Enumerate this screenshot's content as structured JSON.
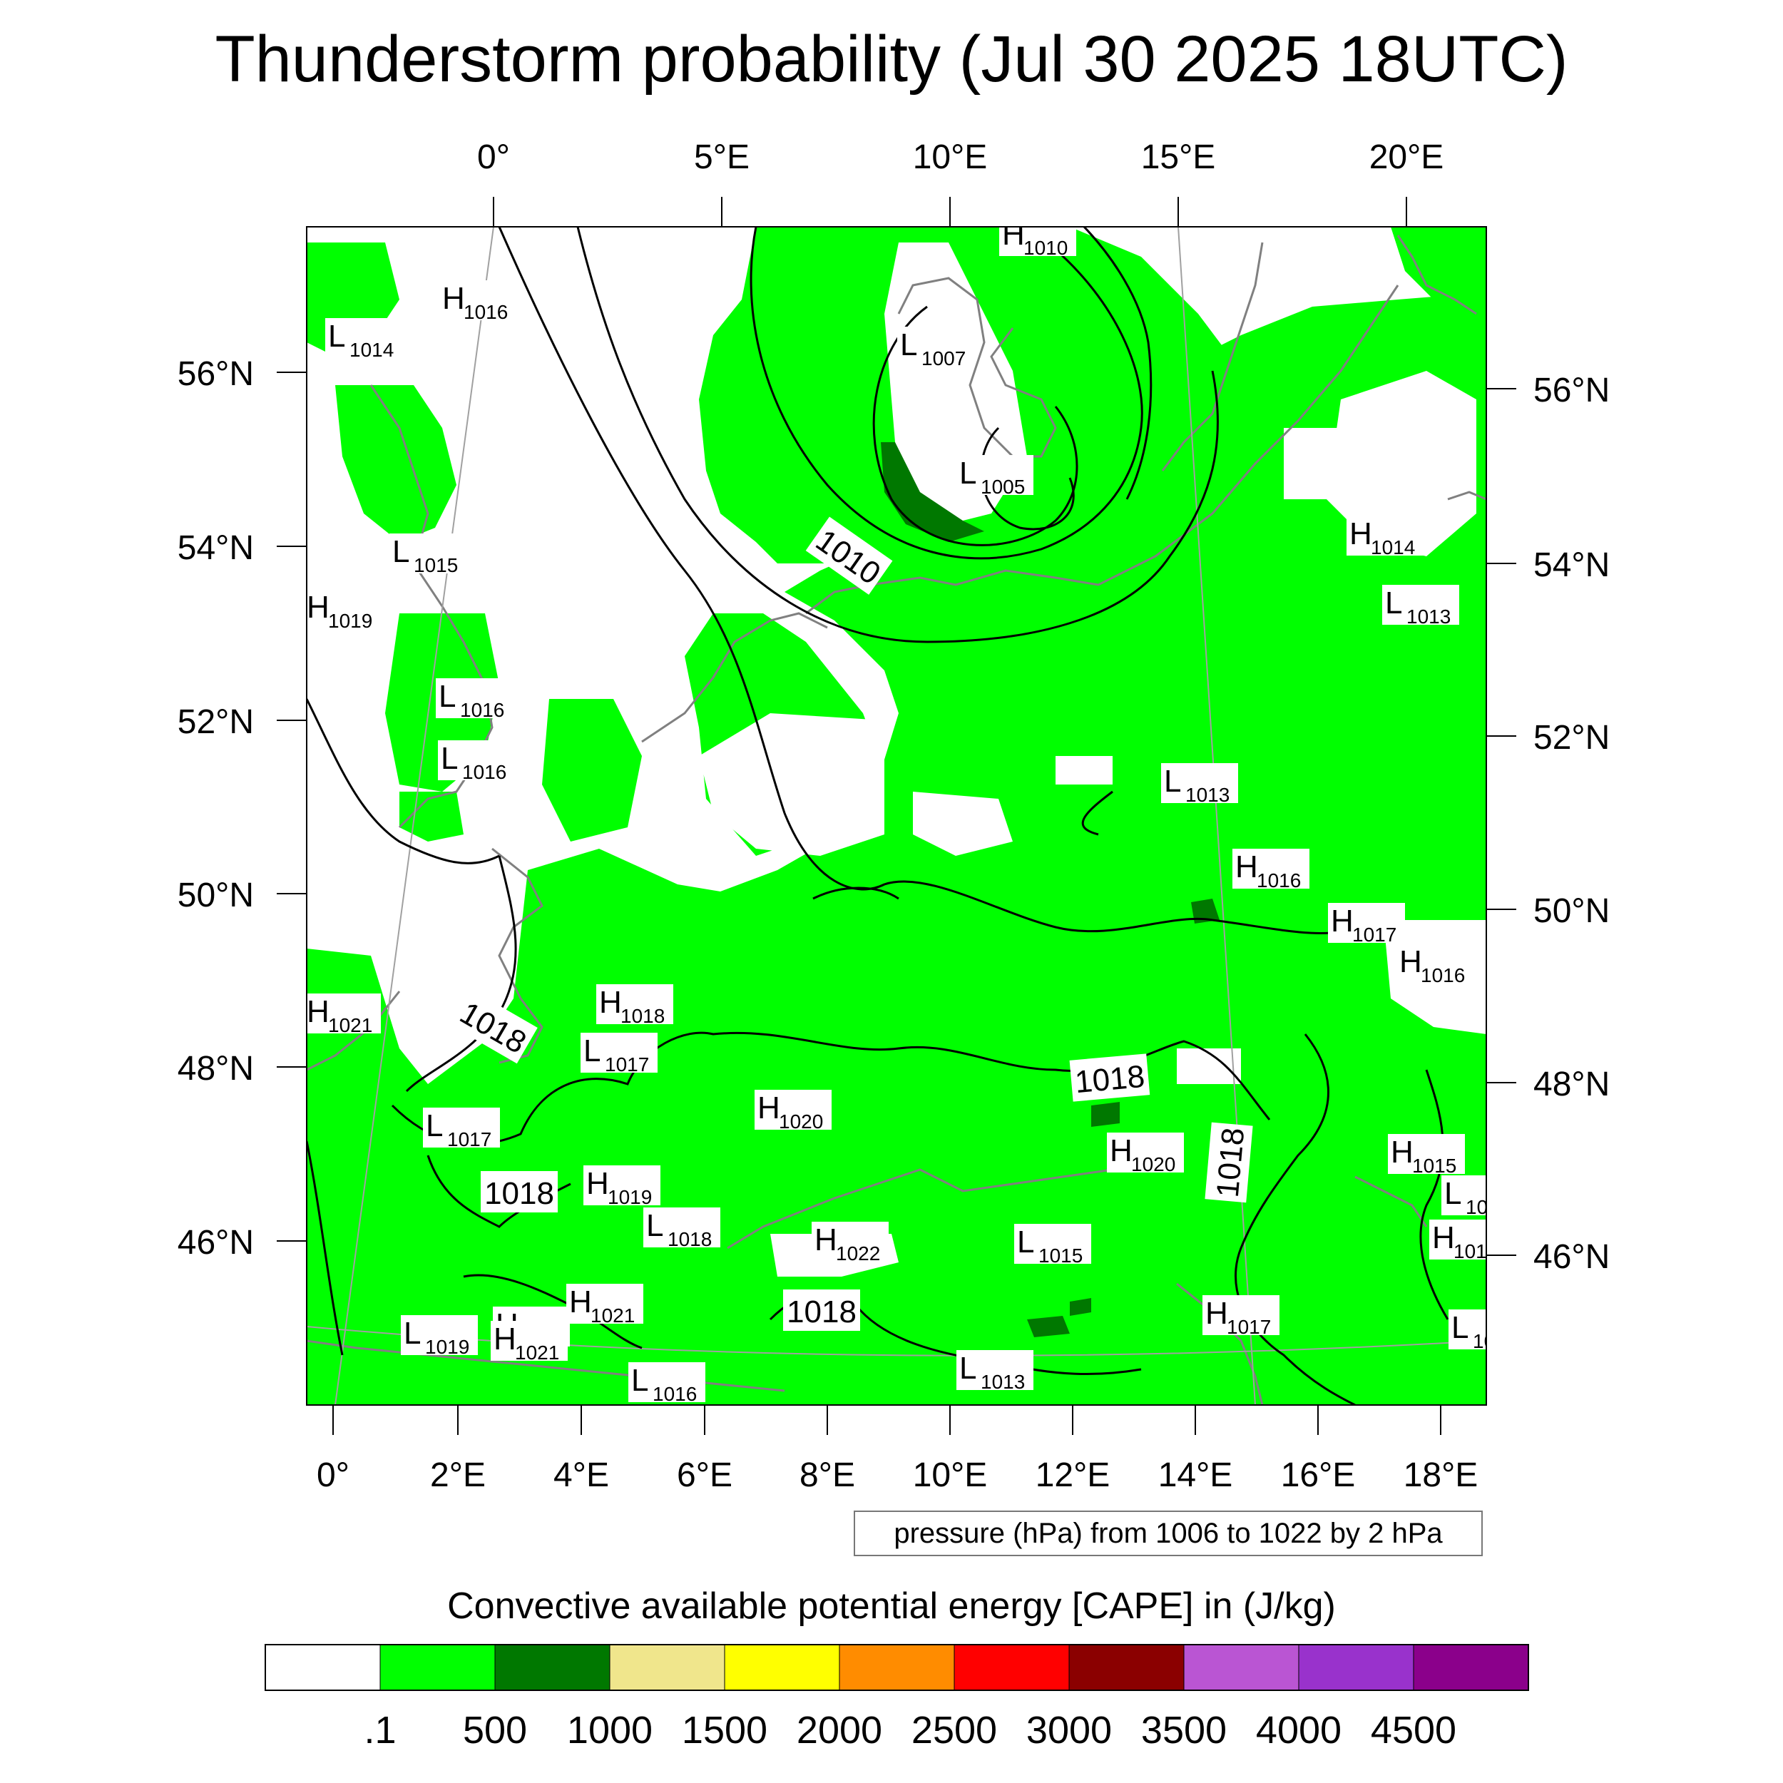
{
  "title": "Thunderstorm probability (Jul 30 2025 18UTC)",
  "map": {
    "top_lon_labels": [
      "0°",
      "5°E",
      "10°E",
      "15°E",
      "20°E"
    ],
    "bottom_lon_labels": [
      "0°",
      "2°E",
      "4°E",
      "6°E",
      "8°E",
      "10°E",
      "12°E",
      "14°E",
      "16°E",
      "18°E"
    ],
    "left_lat_labels": [
      "56°N",
      "54°N",
      "52°N",
      "50°N",
      "48°N",
      "46°N"
    ],
    "right_lat_labels": [
      "56°N",
      "54°N",
      "52°N",
      "50°N",
      "48°N",
      "46°N"
    ],
    "colors": {
      "cape_low": "#00ff00",
      "cape_mid": "#007800",
      "isobar": "#000000",
      "coast": "#808080"
    },
    "isobar_labels": [
      "1010",
      "1018",
      "1018",
      "1018",
      "1018",
      "1018"
    ],
    "pressure_centers": [
      {
        "t": "H",
        "v": "1010"
      },
      {
        "t": "H",
        "v": "1016"
      },
      {
        "t": "L",
        "v": "1014"
      },
      {
        "t": "L",
        "v": "1007"
      },
      {
        "t": "L",
        "v": "1005"
      },
      {
        "t": "L",
        "v": "1015"
      },
      {
        "t": "H",
        "v": "1019"
      },
      {
        "t": "H",
        "v": "1014"
      },
      {
        "t": "L",
        "v": "1013"
      },
      {
        "t": "L",
        "v": "1016"
      },
      {
        "t": "L",
        "v": "1016"
      },
      {
        "t": "L",
        "v": "1013"
      },
      {
        "t": "H",
        "v": "1016"
      },
      {
        "t": "H",
        "v": "1017"
      },
      {
        "t": "H",
        "v": "1016"
      },
      {
        "t": "H",
        "v": "1021"
      },
      {
        "t": "H",
        "v": "1018"
      },
      {
        "t": "L",
        "v": "1017"
      },
      {
        "t": "H",
        "v": "1020"
      },
      {
        "t": "L",
        "v": "1017"
      },
      {
        "t": "H",
        "v": "1019"
      },
      {
        "t": "H",
        "v": "1021"
      },
      {
        "t": "H",
        "v": "1020"
      },
      {
        "t": "H",
        "v": "1015"
      },
      {
        "t": "L",
        "v": "10"
      },
      {
        "t": "L",
        "v": "1018"
      },
      {
        "t": "H",
        "v": "1022"
      },
      {
        "t": "L",
        "v": "1015"
      },
      {
        "t": "H",
        "v": "101"
      },
      {
        "t": "H",
        "v": "1021"
      },
      {
        "t": "L",
        "v": "1019"
      },
      {
        "t": "H",
        "v": "1021"
      },
      {
        "t": "H",
        "v": "1017"
      },
      {
        "t": "L",
        "v": "10"
      },
      {
        "t": "L",
        "v": "1016"
      },
      {
        "t": "L",
        "v": "1013"
      }
    ]
  },
  "legend_note": "pressure (hPa) from 1006 to 1022 by 2 hPa",
  "colorbar": {
    "title": "Convective available potential energy [CAPE] in (J/kg)",
    "colors": [
      "#ffffff",
      "#00ff00",
      "#007800",
      "#f0e68c",
      "#ffff00",
      "#ff8c00",
      "#ff0000",
      "#8b0000",
      "#ba55d3",
      "#9932cc",
      "#8b008b"
    ],
    "tick_labels": [
      ".1",
      "500",
      "1000",
      "1500",
      "2000",
      "2500",
      "3000",
      "3500",
      "4000",
      "4500"
    ]
  }
}
